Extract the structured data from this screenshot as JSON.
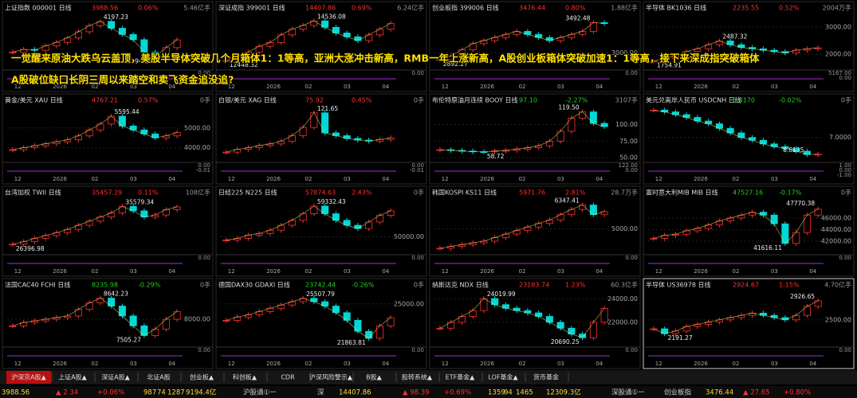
{
  "headline": [
    "一觉醒来原油大跌乌云盖顶，美股半导体突破几个月箱体1：1等高，亚洲大涨冲击新高，RMB一年上涨新高，A股创业板箱体突破加速1：1等高，接下来深成指突破箱体",
    "A股破位缺口长阴三周以来踏空和卖飞资金追没追?"
  ],
  "x_labels": [
    "12",
    "2026",
    "02",
    "03",
    "04"
  ],
  "panels": [
    {
      "title": "上证指数 000001 日线",
      "price": "3988.56",
      "change": "0.06%",
      "volume": "5.46亿手",
      "ylim": [
        3700,
        4260
      ],
      "yticks": [],
      "closes": [
        3850,
        3880,
        3870,
        3920,
        3960,
        4010,
        4080,
        4150,
        4197.23,
        4120,
        4050,
        3990,
        3850,
        3794.68,
        3900,
        3988.56
      ],
      "annotations": [
        "4197.23",
        "3794.68"
      ],
      "sub_labels": [
        "0.00"
      ]
    },
    {
      "title": "深证成指 399001 日线",
      "price": "14407.86",
      "change": "0.69%",
      "volume": "6.24亿手",
      "ylim": [
        12200,
        14800
      ],
      "yticks": [],
      "closes": [
        12448.32,
        12700,
        12900,
        13200,
        13400,
        13800,
        14100,
        14300,
        14536.08,
        14200,
        13900,
        13700,
        13500,
        13800,
        14100,
        14407.86
      ],
      "annotations": [
        "14536.08",
        "12448.32"
      ],
      "sub_labels": [
        "0.00"
      ]
    },
    {
      "title": "创业板指 399006 日线",
      "price": "3476.44",
      "change": "0.80%",
      "volume": "1.88亿手",
      "ylim": [
        2800,
        3600
      ],
      "yticks": [
        {
          "value": 3000,
          "label": "3000.00"
        }
      ],
      "closes": [
        2892.27,
        2950,
        3050,
        3150,
        3200,
        3250,
        3300,
        3350,
        3300,
        3250,
        3200,
        3250,
        3300,
        3350,
        3492.48,
        3476.44
      ],
      "annotations": [
        "3492.48",
        "2892.27"
      ],
      "sub_labels": [
        "0.00"
      ]
    },
    {
      "title": "半导体 BK1036 日线",
      "price": "2235.55",
      "change": "0.52%",
      "volume": "2004万手",
      "ylim": [
        1600,
        3400
      ],
      "yticks": [
        {
          "value": 3000,
          "label": "3000.00"
        },
        {
          "value": 2000,
          "label": "2000.00"
        }
      ],
      "closes": [
        1754.91,
        1850,
        1950,
        2100,
        2200,
        2350,
        2487.32,
        2350,
        2250,
        2200,
        2150,
        2100,
        2050,
        2150,
        2200,
        2235.55
      ],
      "annotations": [
        "2487.32",
        "1754.91"
      ],
      "sub_labels": [
        "5167.00",
        "0.00"
      ]
    },
    {
      "title": "黄金/美元 XAU 日线",
      "price": "4767.21",
      "change": "0.57%",
      "volume": "0手",
      "ylim": [
        3500,
        6000
      ],
      "yticks": [
        {
          "value": 5000,
          "label": "5000.00"
        },
        {
          "value": 4000,
          "label": "4000.00"
        }
      ],
      "closes": [
        3900,
        4000,
        4100,
        4200,
        4300,
        4400,
        4600,
        4900,
        5200,
        5595.44,
        5100,
        4900,
        4700,
        4500,
        4600,
        4767.21
      ],
      "annotations": [
        "5595.44"
      ],
      "sub_labels": [
        "0.00",
        "-0.01"
      ]
    },
    {
      "title": "白银/美元 XAG 日线",
      "price": "75.92",
      "change": "0.45%",
      "volume": "0手",
      "ylim": [
        40,
        130
      ],
      "yticks": [],
      "closes": [
        50,
        55,
        58,
        62,
        65,
        70,
        80,
        95,
        121.65,
        85,
        80,
        75,
        72,
        70,
        73,
        75.92
      ],
      "annotations": [
        "121.65"
      ],
      "sub_labels": [
        "0.00",
        "-0.01"
      ]
    },
    {
      "title": "布伦特原油月连续 BOOY 日线",
      "price": "97.10",
      "change": "-2.27%",
      "volume": "3107手",
      "ylim": [
        50,
        125
      ],
      "yticks": [
        {
          "value": 100,
          "label": "100.00"
        },
        {
          "value": 75,
          "label": "75.00"
        },
        {
          "value": 50,
          "label": "50.00"
        }
      ],
      "closes": [
        62,
        61,
        60,
        59,
        58.72,
        60,
        61,
        63,
        65,
        68,
        75,
        90,
        110,
        119.5,
        102,
        97.1
      ],
      "annotations": [
        "119.50",
        "58.72"
      ],
      "sub_labels": [
        "122.00",
        "0.00"
      ]
    },
    {
      "title": "美元兑离岸人民币 USDCNH 日线",
      "price": "6.8170",
      "change": "-0.02%",
      "volume": "0手",
      "ylim": [
        6.78,
        7.32
      ],
      "yticks": [
        {
          "value": 7,
          "label": "7.0000"
        }
      ],
      "closes": [
        7.3,
        7.28,
        7.25,
        7.22,
        7.18,
        7.15,
        7.1,
        7.05,
        7,
        6.97,
        6.93,
        6.9,
        6.88,
        6.85,
        6.8135,
        6.817
      ],
      "annotations": [
        "6.8135"
      ],
      "sub_labels": [
        "1.00",
        "0.00",
        "-1.00"
      ]
    },
    {
      "title": "台湾加权 TWII 日线",
      "price": "35457.29",
      "change": "0.11%",
      "volume": "108亿手",
      "ylim": [
        25000,
        37000
      ],
      "yticks": [],
      "closes": [
        26396.98,
        27000,
        27800,
        28500,
        29200,
        30000,
        31000,
        32000,
        33000,
        34000,
        35579.34,
        34500,
        33000,
        33500,
        34800,
        35457.29
      ],
      "annotations": [
        "35579.34",
        "26396.98"
      ],
      "sub_labels": [
        "0.00"
      ]
    },
    {
      "title": "日经225 N225 日线",
      "price": "57874.63",
      "change": "2.43%",
      "volume": "0手",
      "ylim": [
        46000,
        61000
      ],
      "yticks": [
        {
          "value": 50000,
          "label": "50000.00"
        }
      ],
      "closes": [
        49000,
        49500,
        50500,
        51000,
        52000,
        53500,
        55000,
        57000,
        59332.43,
        57000,
        55000,
        53500,
        52500,
        54500,
        56500,
        57874.63
      ],
      "annotations": [
        "59332.43"
      ],
      "sub_labels": [
        "0.00"
      ]
    },
    {
      "title": "韩国KOSPI KS11 日线",
      "price": "5971.76",
      "change": "2.81%",
      "volume": "28.7万手",
      "ylim": [
        3800,
        6600
      ],
      "yticks": [
        {
          "value": 5000,
          "label": "5000.00"
        }
      ],
      "closes": [
        3900,
        4000,
        4100,
        4200,
        4300,
        4500,
        4700,
        4900,
        5100,
        5300,
        5500,
        5800,
        6100,
        6347.41,
        5800,
        5971.76
      ],
      "annotations": [
        "6347.41"
      ],
      "sub_labels": [
        "0.00"
      ]
    },
    {
      "title": "富时意大利MIB MIB 日线",
      "price": "47527.16",
      "change": "-0.17%",
      "volume": "0手",
      "ylim": [
        40500,
        49000
      ],
      "yticks": [
        {
          "value": 46000,
          "label": "46000.00"
        },
        {
          "value": 44000,
          "label": "44000.00"
        },
        {
          "value": 42000,
          "label": "42000.00"
        }
      ],
      "closes": [
        42500,
        43000,
        43200,
        43800,
        44200,
        44800,
        45500,
        46000,
        46500,
        47000,
        46500,
        45000,
        41616.11,
        43500,
        46500,
        47527.16
      ],
      "annotations": [
        "47770.38",
        "41616.11"
      ],
      "sub_labels": [
        "0.00"
      ]
    },
    {
      "title": "法国CAC40 FCHI 日线",
      "price": "8235.98",
      "change": "-0.29%",
      "volume": "0手",
      "ylim": [
        7300,
        8800
      ],
      "yticks": [
        {
          "value": 8000,
          "label": "8000.00"
        }
      ],
      "closes": [
        7800,
        7900,
        7950,
        8000,
        8050,
        8100,
        8300,
        8500,
        8642.23,
        8400,
        8100,
        7800,
        7505.27,
        7700,
        8000,
        8235.98
      ],
      "annotations": [
        "8642.23",
        "7505.27"
      ],
      "sub_labels": [
        "0.00"
      ]
    },
    {
      "title": "德国DAX30 GDAXI 日线",
      "price": "23742.44",
      "change": "-0.26%",
      "volume": "0手",
      "ylim": [
        21500,
        26000
      ],
      "yticks": [
        {
          "value": 25000,
          "label": "25000.00"
        }
      ],
      "closes": [
        23500,
        23800,
        24000,
        24300,
        24600,
        24900,
        25200,
        25507.79,
        25200,
        24800,
        24200,
        23500,
        22500,
        21863.81,
        23000,
        23742.44
      ],
      "annotations": [
        "25507.79",
        "21863.81"
      ],
      "sub_labels": [
        "0.00"
      ]
    },
    {
      "title": "纳斯达克 NDX 日线",
      "price": "23183.74",
      "change": "1.23%",
      "volume": "60.3亿手",
      "ylim": [
        20300,
        24500
      ],
      "yticks": [
        {
          "value": 24000,
          "label": "24000.00"
        },
        {
          "value": 22000,
          "label": "22000.00"
        }
      ],
      "closes": [
        21500,
        22000,
        22500,
        23000,
        24019.99,
        23500,
        23200,
        23000,
        22800,
        22500,
        22000,
        21500,
        21000,
        20690.25,
        22000,
        23183.74
      ],
      "annotations": [
        "24019.99",
        "20690.25"
      ],
      "sub_labels": [
        "0.00"
      ]
    },
    {
      "title": "半导体 US36978 日线",
      "price": "2924.67",
      "change": "1.15%",
      "volume": "4.70亿手",
      "ylim": [
        2000,
        3100
      ],
      "yticks": [
        {
          "value": 2500,
          "label": "2500.00"
        }
      ],
      "closes": [
        2300,
        2191.27,
        2250,
        2350,
        2400,
        2450,
        2500,
        2550,
        2600,
        2650,
        2600,
        2550,
        2500,
        2600,
        2800,
        2924.67
      ],
      "annotations": [
        "2926.65",
        "2191.27"
      ],
      "sub_labels": [
        "0.00"
      ]
    }
  ],
  "tabs": [
    "沪深京A股▲",
    "上证A股▲",
    "深证A股▲",
    "北证A股",
    "创业板▲",
    "科创板▲",
    "CDR",
    "沪深风险警示▲",
    "B股▲",
    "股转系统▲",
    "ETF基金▲",
    "LOF基金▲",
    "货币基金"
  ],
  "status": [
    "3988.56",
    "▲ 2.34",
    "+0.06%",
    "987",
    "74",
    "1287",
    "9194.4亿",
    "沪股通①一",
    "深",
    "14407.86",
    "▲ 98.39",
    "+0.69%",
    "1359",
    "94",
    "1465",
    "12309.3亿",
    "深股通①一",
    "创业板指",
    "3476.44",
    "▲ 27.65",
    "+0.80%"
  ]
}
